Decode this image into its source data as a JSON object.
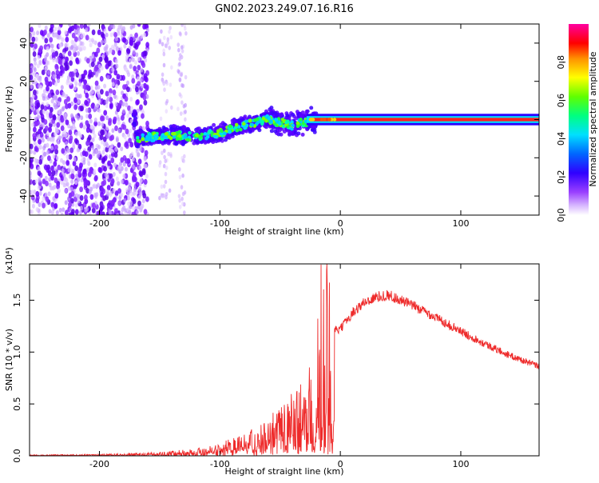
{
  "chart_data": [
    {
      "type": "heatmap",
      "title": "GN02.2023.249.07.16.R16",
      "xlabel": "Height of straight line (km)",
      "ylabel": "Frequency (Hz)",
      "xlim": [
        -258,
        165
      ],
      "ylim": [
        -50,
        50
      ],
      "xticks": [
        -200,
        -100,
        0,
        100
      ],
      "yticks": [
        -40,
        -20,
        0,
        20,
        40
      ],
      "xtick_labels": [
        "-200",
        "-100",
        "0",
        "100"
      ],
      "ytick_labels": [
        "-40",
        "-20",
        "0",
        "20",
        "40"
      ],
      "colorbar": {
        "label": "Normalized spectral amplitude",
        "range": [
          0,
          1
        ],
        "ticks": [
          0.0,
          0.2,
          0.4,
          0.6,
          0.8
        ],
        "tick_labels": [
          "0.0",
          "0.2",
          "0.4",
          "0.6",
          "0.8"
        ],
        "colors": [
          "#ffffff",
          "#c8a0ff",
          "#7a00ff",
          "#0000ff",
          "#00e5ff",
          "#00ff66",
          "#ffff00",
          "#ff8800",
          "#ff0000",
          "#ff00aa"
        ]
      },
      "ridge": {
        "description_points": [
          {
            "x": -170,
            "y": -10
          },
          {
            "x": -140,
            "y": -8
          },
          {
            "x": -120,
            "y": -9
          },
          {
            "x": -100,
            "y": -7
          },
          {
            "x": -80,
            "y": -3
          },
          {
            "x": -60,
            "y": 0
          },
          {
            "x": -40,
            "y": -3
          },
          {
            "x": -20,
            "y": 0
          },
          {
            "x": 0,
            "y": 0
          },
          {
            "x": 165,
            "y": 0
          }
        ]
      }
    },
    {
      "type": "line",
      "xlabel": "Height of straight line (km)",
      "ylabel": "SNR (10 * v/v)",
      "y_multiplier": "(x10⁴)",
      "xlim": [
        -258,
        165
      ],
      "ylim": [
        0,
        1.85
      ],
      "xticks": [
        -200,
        -100,
        0,
        100
      ],
      "yticks": [
        0.0,
        0.5,
        1.0,
        1.5
      ],
      "xtick_labels": [
        "-200",
        "-100",
        "0",
        "100"
      ],
      "ytick_labels": [
        "0.0",
        "0.5",
        "1.0",
        "1.5"
      ],
      "color": "#ee2a2a",
      "series": [
        {
          "name": "SNR",
          "x": [
            -258,
            -200,
            -160,
            -140,
            -120,
            -100,
            -80,
            -60,
            -50,
            -40,
            -30,
            -20,
            -15,
            -10,
            -8,
            0,
            10,
            20,
            30,
            40,
            60,
            80,
            100,
            120,
            140,
            165
          ],
          "values": [
            0.01,
            0.015,
            0.03,
            0.05,
            0.07,
            0.12,
            0.22,
            0.33,
            0.45,
            0.55,
            0.7,
            0.9,
            1.05,
            1.12,
            1.2,
            1.22,
            1.38,
            1.48,
            1.53,
            1.55,
            1.45,
            1.33,
            1.2,
            1.08,
            0.97,
            0.86
          ]
        }
      ]
    }
  ]
}
